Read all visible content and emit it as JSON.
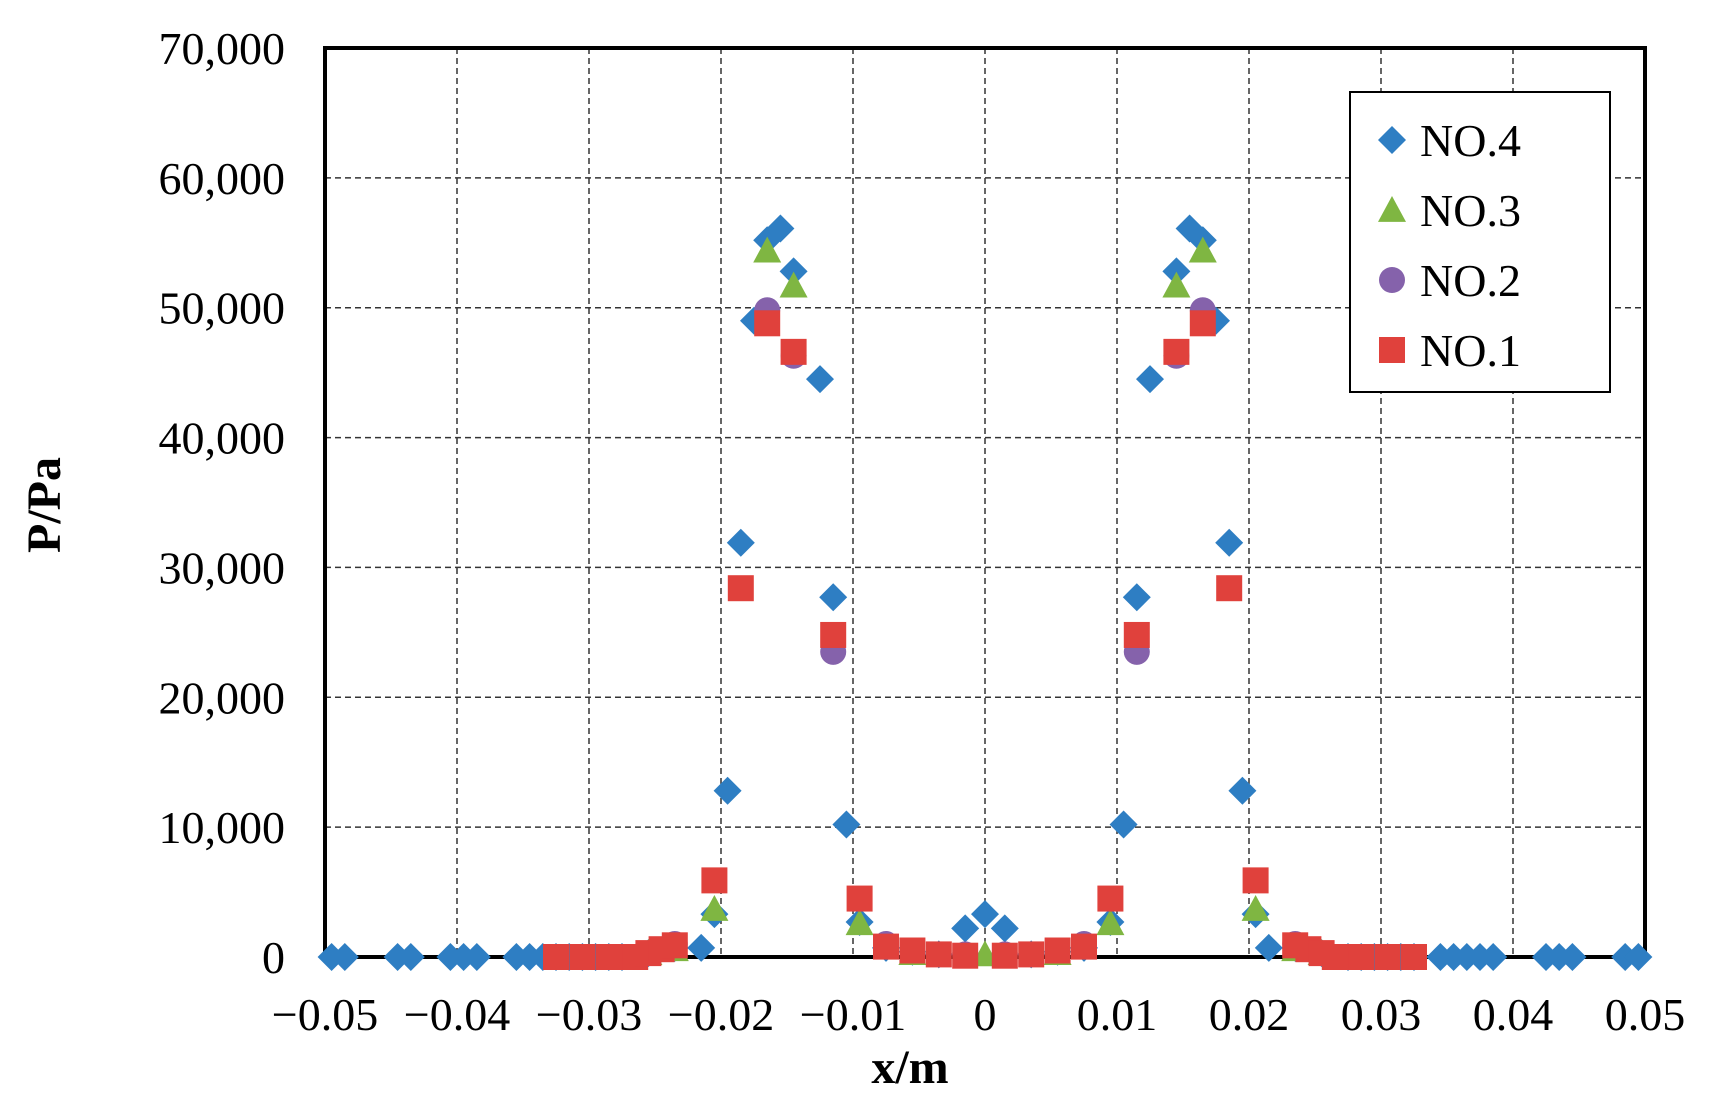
{
  "chart_data": {
    "type": "scatter",
    "xlabel": "x/m",
    "ylabel": "P/Pa",
    "xlim": [
      -0.05,
      0.05
    ],
    "ylim": [
      0,
      70000
    ],
    "xticks": [
      "-0.05",
      "-0.04",
      "-0.03",
      "-0.02",
      "-0.01",
      "0",
      "0.01",
      "0.02",
      "0.03",
      "0.04",
      "0.05"
    ],
    "yticks": [
      "0",
      "10,000",
      "20,000",
      "30,000",
      "40,000",
      "50,000",
      "60,000",
      "70,000"
    ],
    "grid": true,
    "legend_position": "top-right",
    "series": [
      {
        "name": "NO.4",
        "marker": "diamond",
        "color": "#2E7EC3",
        "points": [
          [
            -0.0495,
            0
          ],
          [
            -0.0485,
            0
          ],
          [
            -0.0445,
            0
          ],
          [
            -0.0435,
            0
          ],
          [
            -0.0405,
            0
          ],
          [
            -0.0395,
            0
          ],
          [
            -0.0385,
            0
          ],
          [
            -0.0355,
            0
          ],
          [
            -0.0345,
            0
          ],
          [
            -0.0335,
            0
          ],
          [
            -0.0325,
            0
          ],
          [
            -0.0315,
            0
          ],
          [
            -0.0305,
            0
          ],
          [
            -0.0295,
            0
          ],
          [
            -0.0285,
            0
          ],
          [
            -0.0275,
            0
          ],
          [
            -0.0255,
            300
          ],
          [
            -0.0235,
            700
          ],
          [
            -0.0215,
            700
          ],
          [
            -0.0205,
            3300
          ],
          [
            -0.0195,
            12800
          ],
          [
            -0.0185,
            31900
          ],
          [
            -0.0175,
            49000
          ],
          [
            -0.0165,
            55200
          ],
          [
            -0.0155,
            56100
          ],
          [
            -0.0145,
            52800
          ],
          [
            -0.0125,
            44500
          ],
          [
            -0.0115,
            27700
          ],
          [
            -0.0105,
            10200
          ],
          [
            -0.0095,
            2700
          ],
          [
            -0.0075,
            700
          ],
          [
            -0.0055,
            400
          ],
          [
            -0.0035,
            200
          ],
          [
            -0.0015,
            2200
          ],
          [
            0,
            3300
          ],
          [
            0.0015,
            2200
          ],
          [
            0.0035,
            200
          ],
          [
            0.0055,
            400
          ],
          [
            0.0075,
            700
          ],
          [
            0.0095,
            2700
          ],
          [
            0.0105,
            10200
          ],
          [
            0.0115,
            27700
          ],
          [
            0.0125,
            44500
          ],
          [
            0.0145,
            52800
          ],
          [
            0.0155,
            56100
          ],
          [
            0.0165,
            55200
          ],
          [
            0.0175,
            49000
          ],
          [
            0.0185,
            31900
          ],
          [
            0.0195,
            12800
          ],
          [
            0.0205,
            3300
          ],
          [
            0.0215,
            700
          ],
          [
            0.0235,
            700
          ],
          [
            0.0255,
            300
          ],
          [
            0.0275,
            0
          ],
          [
            0.0285,
            0
          ],
          [
            0.0295,
            0
          ],
          [
            0.0305,
            0
          ],
          [
            0.0315,
            0
          ],
          [
            0.0325,
            0
          ],
          [
            0.0345,
            0
          ],
          [
            0.0355,
            0
          ],
          [
            0.0365,
            0
          ],
          [
            0.0375,
            0
          ],
          [
            0.0385,
            0
          ],
          [
            0.0425,
            0
          ],
          [
            0.0435,
            0
          ],
          [
            0.0445,
            0
          ],
          [
            0.0485,
            0
          ],
          [
            0.0495,
            0
          ]
        ]
      },
      {
        "name": "NO.3",
        "marker": "triangle",
        "color": "#7FB642",
        "points": [
          [
            -0.0255,
            300
          ],
          [
            -0.0235,
            600
          ],
          [
            -0.0205,
            3700
          ],
          [
            -0.0165,
            54400
          ],
          [
            -0.0145,
            51700
          ],
          [
            -0.0095,
            2600
          ],
          [
            -0.0055,
            300
          ],
          [
            0,
            200
          ],
          [
            0.0055,
            300
          ],
          [
            0.0095,
            2600
          ],
          [
            0.0145,
            51700
          ],
          [
            0.0165,
            54400
          ],
          [
            0.0205,
            3700
          ],
          [
            0.0235,
            600
          ],
          [
            0.0255,
            300
          ]
        ]
      },
      {
        "name": "NO.2",
        "marker": "circle",
        "color": "#8562AB",
        "points": [
          [
            -0.0235,
            1000
          ],
          [
            -0.0165,
            49800
          ],
          [
            -0.0145,
            46300
          ],
          [
            -0.0115,
            23500
          ],
          [
            -0.0075,
            1000
          ],
          [
            -0.0015,
            200
          ],
          [
            0.0015,
            200
          ],
          [
            0.0075,
            1000
          ],
          [
            0.0115,
            23500
          ],
          [
            0.0145,
            46300
          ],
          [
            0.0165,
            49800
          ],
          [
            0.0235,
            1000
          ]
        ]
      },
      {
        "name": "NO.1",
        "marker": "square",
        "color": "#E0413C",
        "points": [
          [
            -0.0325,
            0
          ],
          [
            -0.0305,
            0
          ],
          [
            -0.0285,
            0
          ],
          [
            -0.0275,
            0
          ],
          [
            -0.0265,
            0
          ],
          [
            -0.0255,
            300
          ],
          [
            -0.0245,
            600
          ],
          [
            -0.0235,
            900
          ],
          [
            -0.0205,
            5900
          ],
          [
            -0.0185,
            28400
          ],
          [
            -0.0165,
            48800
          ],
          [
            -0.0145,
            46600
          ],
          [
            -0.0115,
            24800
          ],
          [
            -0.0095,
            4500
          ],
          [
            -0.0075,
            800
          ],
          [
            -0.0055,
            500
          ],
          [
            -0.0035,
            200
          ],
          [
            -0.0015,
            100
          ],
          [
            0.0015,
            100
          ],
          [
            0.0035,
            200
          ],
          [
            0.0055,
            500
          ],
          [
            0.0075,
            800
          ],
          [
            0.0095,
            4500
          ],
          [
            0.0115,
            24800
          ],
          [
            0.0145,
            46600
          ],
          [
            0.0165,
            48800
          ],
          [
            0.0185,
            28400
          ],
          [
            0.0205,
            5900
          ],
          [
            0.0235,
            900
          ],
          [
            0.0245,
            600
          ],
          [
            0.0255,
            300
          ],
          [
            0.0265,
            0
          ],
          [
            0.0275,
            0
          ],
          [
            0.0285,
            0
          ],
          [
            0.0305,
            0
          ],
          [
            0.0325,
            0
          ]
        ]
      }
    ]
  }
}
